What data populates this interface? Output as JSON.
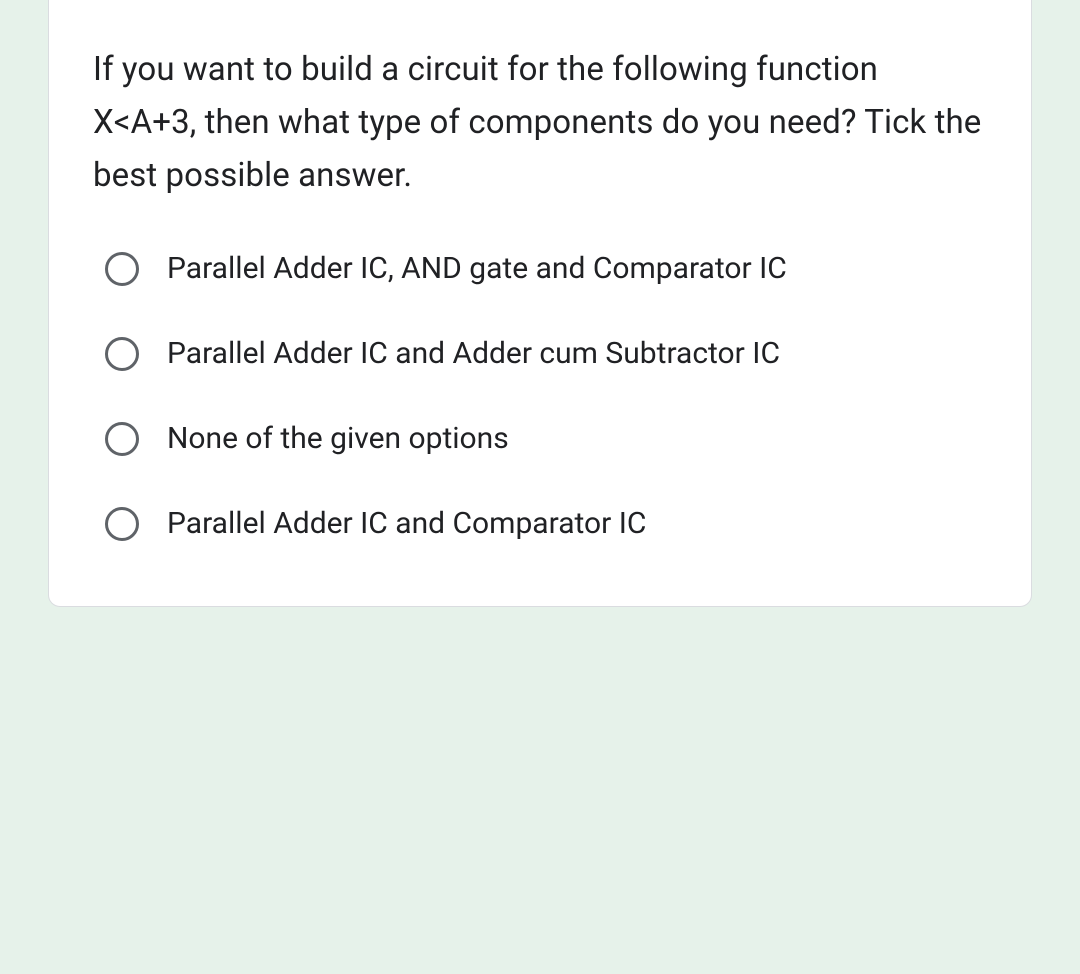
{
  "question": {
    "text": "If you want to build a circuit for the following function X<A+3, then what type of components do you need? Tick the best possible answer."
  },
  "options": [
    {
      "label": "Parallel Adder IC, AND gate and Comparator IC"
    },
    {
      "label": "Parallel Adder IC and Adder cum Subtractor IC"
    },
    {
      "label": "None of the given options"
    },
    {
      "label": "Parallel Adder IC and Comparator IC"
    }
  ],
  "colors": {
    "background": "#e6f2ea",
    "card_bg": "#ffffff",
    "text": "#202124",
    "radio_border": "#5f6368",
    "card_border": "#dadce0"
  },
  "typography": {
    "question_fontsize": 33,
    "option_fontsize": 30,
    "line_height": 1.6
  }
}
